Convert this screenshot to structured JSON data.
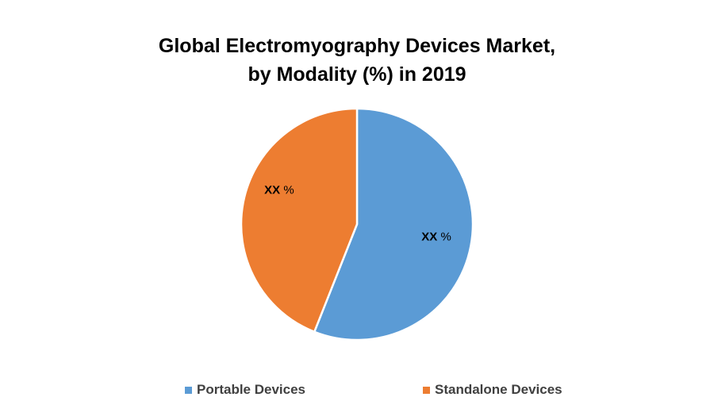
{
  "chart_data": {
    "type": "pie",
    "title": "Global Electromyography Devices Market, by Modality (%) in 2019",
    "title_lines": [
      "Global Electromyography Devices Market,",
      "by Modality (%) in 2019"
    ],
    "slices": [
      {
        "name": "Portable Devices",
        "value": 56,
        "label": "XX %",
        "color": "#5B9BD5"
      },
      {
        "name": "Standalone Devices",
        "value": 44,
        "label": "XX %",
        "color": "#ED7D31"
      }
    ],
    "start_angle_deg": 0,
    "direction": "clockwise",
    "legend_position": "bottom",
    "legend": [
      "Portable Devices",
      "Standalone Devices"
    ]
  }
}
